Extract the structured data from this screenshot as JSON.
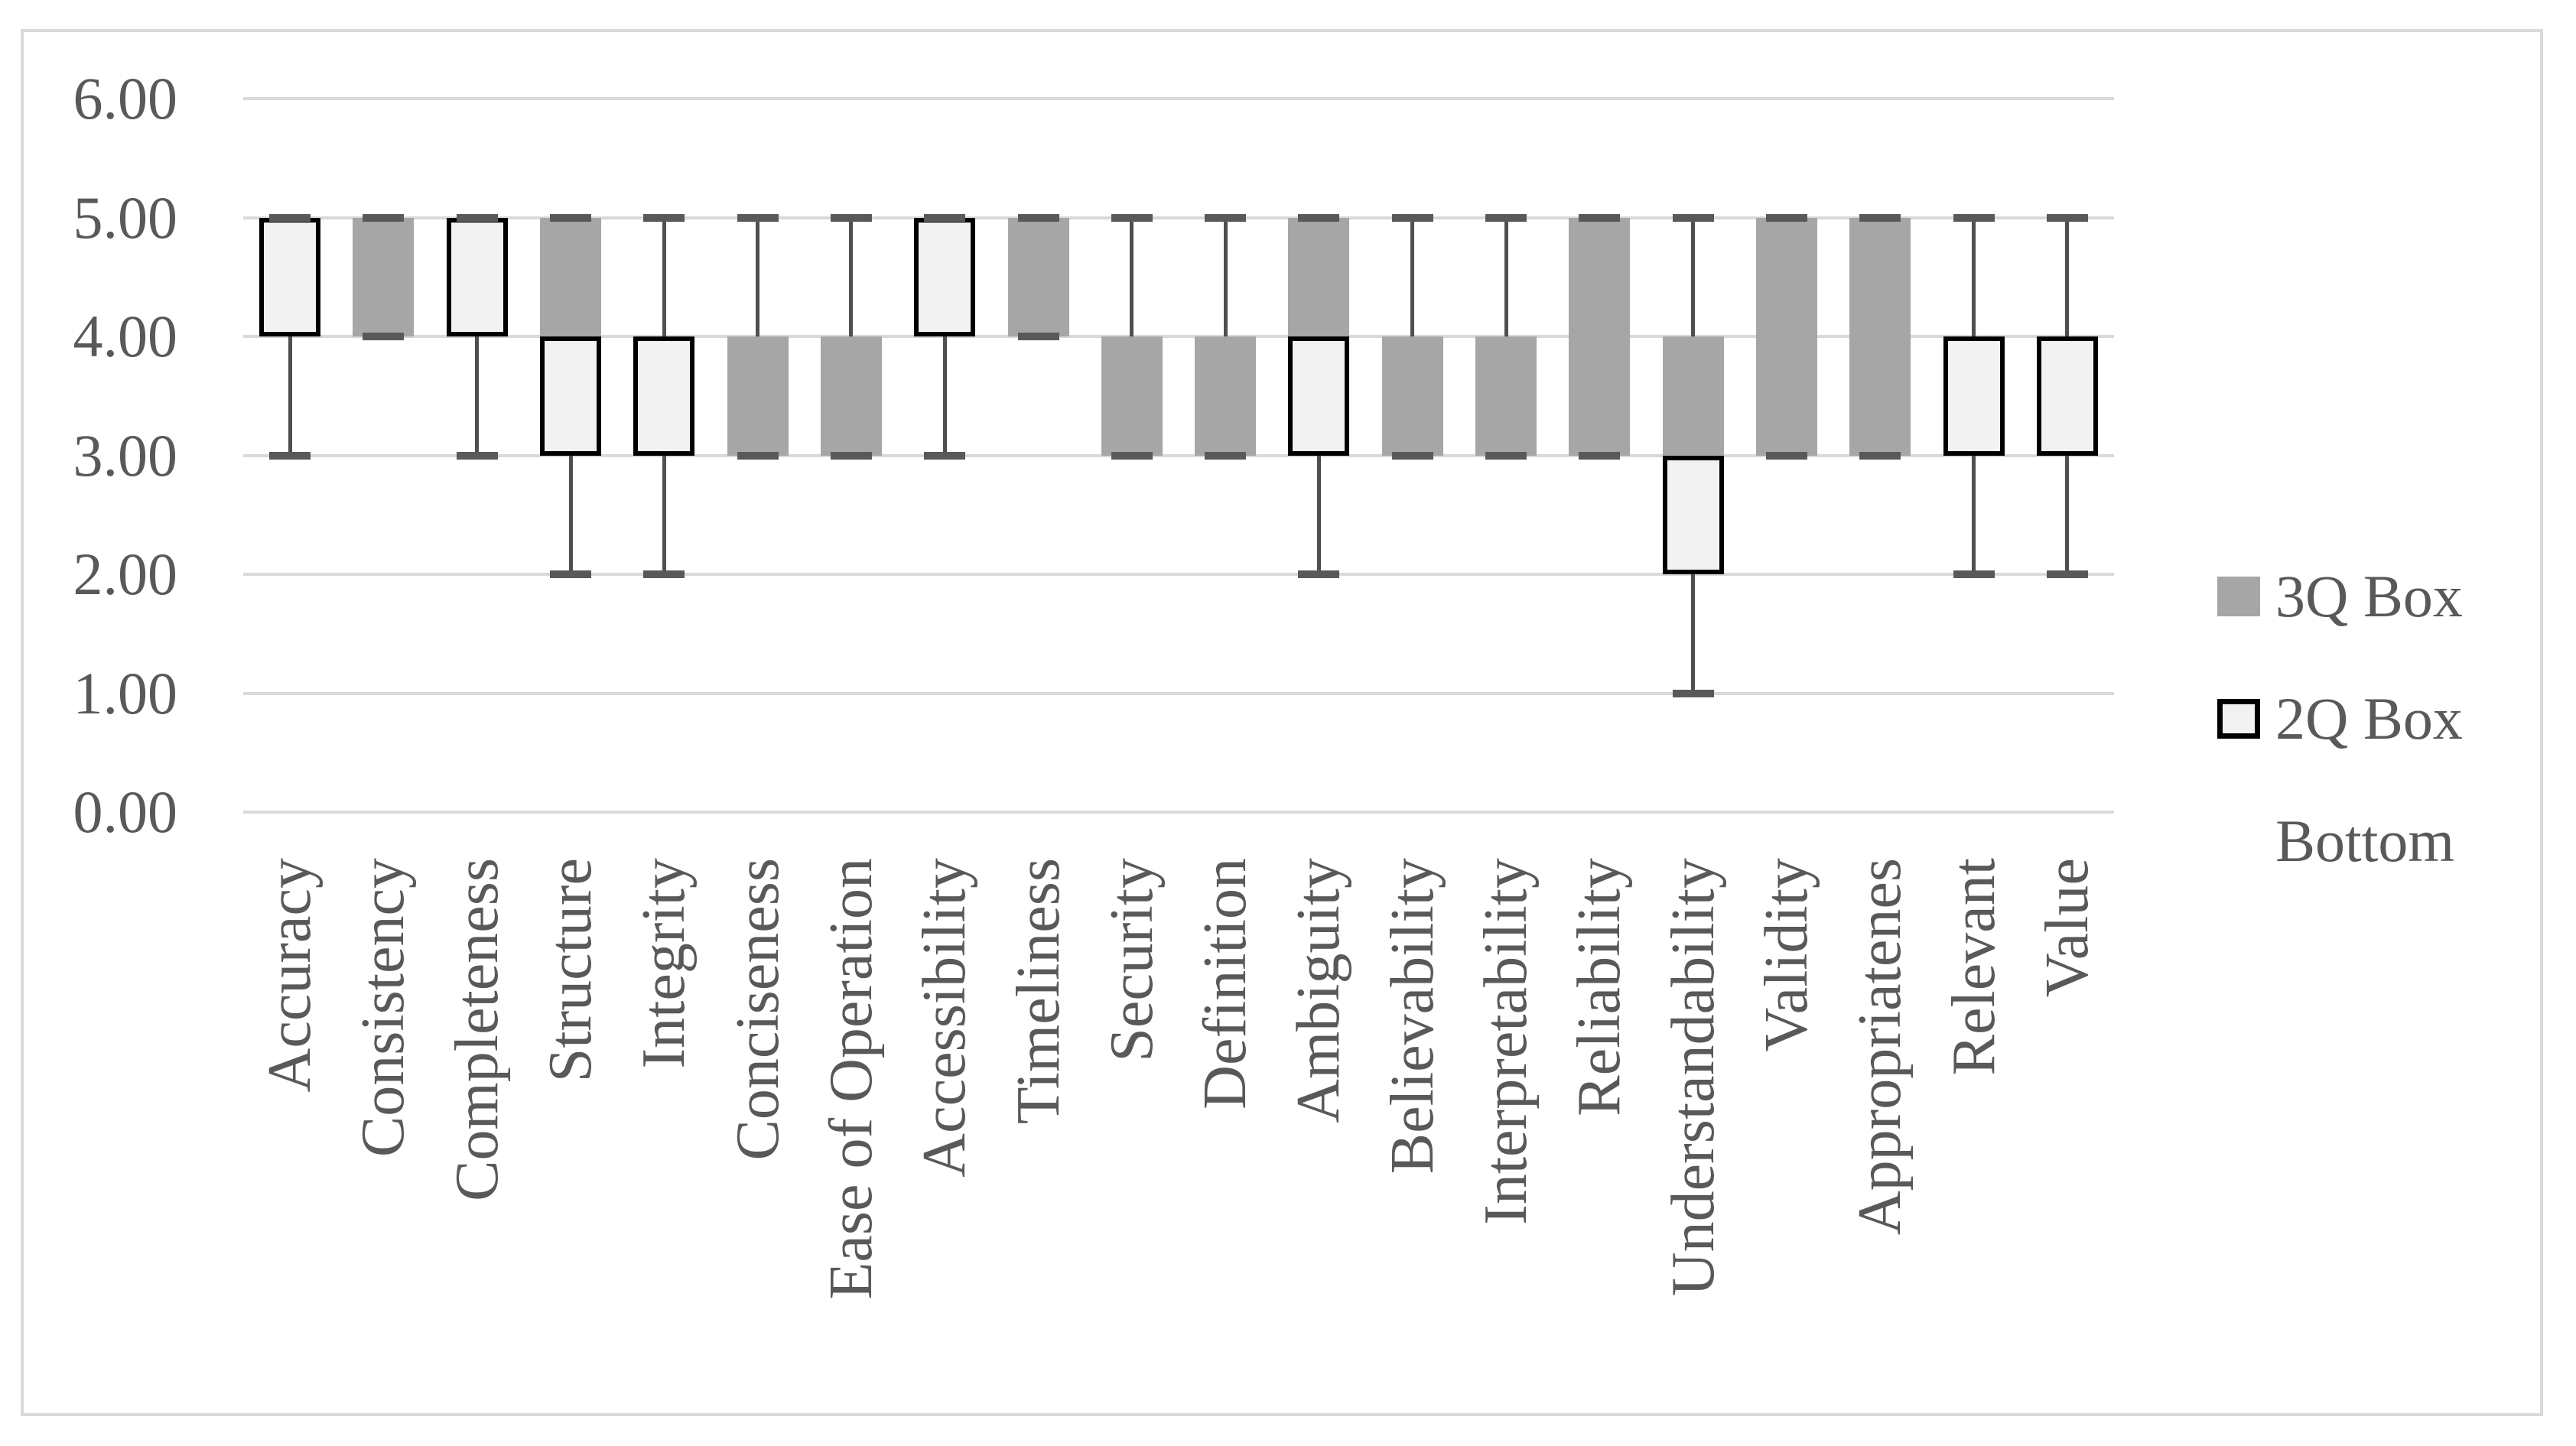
{
  "colors": {
    "box_gray": "#a6a6a6",
    "box_white_fill": "#f2f2f2",
    "box_border": "#000000",
    "whisker": "#4f4f4f",
    "whisker_cap": "#595959",
    "gridline": "#d9d9d9",
    "frame": "#d9d9d9",
    "text": "#595959",
    "background": "#ffffff"
  },
  "y_axis": {
    "tick_labels": [
      "0.00",
      "1.00",
      "2.00",
      "3.00",
      "4.00",
      "5.00",
      "6.00"
    ]
  },
  "legend": {
    "items": [
      {
        "label": "3Q Box",
        "swatch": "gray-filled-square"
      },
      {
        "label": "2Q Box",
        "swatch": "white-square-black-border"
      },
      {
        "label": "Bottom",
        "swatch": "none"
      }
    ]
  },
  "chart_data": {
    "type": "boxplot",
    "title": "",
    "xlabel": "",
    "ylabel": "",
    "ylim": [
      0,
      6
    ],
    "y_ticks": [
      0,
      1,
      2,
      3,
      4,
      5,
      6
    ],
    "grid": true,
    "legend_position": "right",
    "series": [
      {
        "name": "3Q Box",
        "description": "median-to-Q3 box segment",
        "color": "#a6a6a6"
      },
      {
        "name": "2Q Box",
        "description": "Q1-to-median box segment",
        "color": "#f2f2f2"
      },
      {
        "name": "Bottom",
        "description": "hidden stack base series",
        "color": "none"
      }
    ],
    "categories": [
      "Accuracy",
      "Consistency",
      "Completeness",
      "Structure",
      "Integrity",
      "Conciseness",
      "Ease of Operation",
      "Accessibility",
      "Timeliness",
      "Security",
      "Definition",
      "Ambiguity",
      "Believability",
      "Interpretability",
      "Reliability",
      "Understandability",
      "Validity",
      "Appropriatenes",
      "Relevant",
      "Value"
    ],
    "points": [
      {
        "category": "Accuracy",
        "min": 3,
        "q1": 4,
        "median": 5,
        "q3": 5,
        "max": 5
      },
      {
        "category": "Consistency",
        "min": 4,
        "q1": 4,
        "median": 4,
        "q3": 5,
        "max": 5
      },
      {
        "category": "Completeness",
        "min": 3,
        "q1": 4,
        "median": 5,
        "q3": 5,
        "max": 5
      },
      {
        "category": "Structure",
        "min": 2,
        "q1": 3,
        "median": 4,
        "q3": 5,
        "max": 5
      },
      {
        "category": "Integrity",
        "min": 2,
        "q1": 3,
        "median": 4,
        "q3": 4,
        "max": 5
      },
      {
        "category": "Conciseness",
        "min": 3,
        "q1": 3,
        "median": 3,
        "q3": 4,
        "max": 5
      },
      {
        "category": "Ease of Operation",
        "min": 3,
        "q1": 3,
        "median": 3,
        "q3": 4,
        "max": 5
      },
      {
        "category": "Accessibility",
        "min": 3,
        "q1": 4,
        "median": 5,
        "q3": 5,
        "max": 5
      },
      {
        "category": "Timeliness",
        "min": 4,
        "q1": 4,
        "median": 4,
        "q3": 5,
        "max": 5
      },
      {
        "category": "Security",
        "min": 3,
        "q1": 3,
        "median": 3,
        "q3": 4,
        "max": 5
      },
      {
        "category": "Definition",
        "min": 3,
        "q1": 3,
        "median": 3,
        "q3": 4,
        "max": 5
      },
      {
        "category": "Ambiguity",
        "min": 2,
        "q1": 3,
        "median": 4,
        "q3": 5,
        "max": 5
      },
      {
        "category": "Believability",
        "min": 3,
        "q1": 3,
        "median": 3,
        "q3": 4,
        "max": 5
      },
      {
        "category": "Interpretability",
        "min": 3,
        "q1": 3,
        "median": 3,
        "q3": 4,
        "max": 5
      },
      {
        "category": "Reliability",
        "min": 3,
        "q1": 3,
        "median": 3,
        "q3": 5,
        "max": 5
      },
      {
        "category": "Understandability",
        "min": 1,
        "q1": 2,
        "median": 3,
        "q3": 4,
        "max": 5
      },
      {
        "category": "Validity",
        "min": 3,
        "q1": 3,
        "median": 3,
        "q3": 5,
        "max": 5
      },
      {
        "category": "Appropriatenes",
        "min": 3,
        "q1": 3,
        "median": 3,
        "q3": 5,
        "max": 5
      },
      {
        "category": "Relevant",
        "min": 2,
        "q1": 3,
        "median": 4,
        "q3": 4,
        "max": 5
      },
      {
        "category": "Value",
        "min": 2,
        "q1": 3,
        "median": 4,
        "q3": 4,
        "max": 5
      }
    ]
  }
}
